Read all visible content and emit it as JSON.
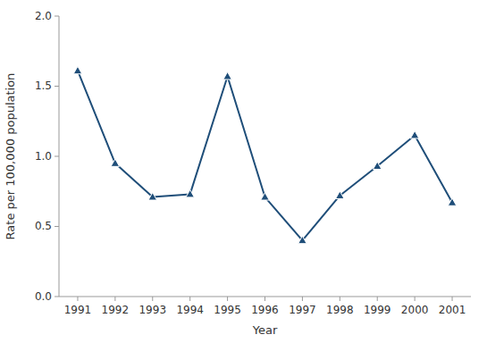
{
  "chart_data": {
    "type": "line",
    "x": [
      1991,
      1992,
      1993,
      1994,
      1995,
      1996,
      1997,
      1998,
      1999,
      2000,
      2001
    ],
    "values": [
      1.61,
      0.95,
      0.71,
      0.73,
      1.57,
      0.71,
      0.4,
      0.72,
      0.93,
      1.15,
      0.67
    ],
    "color": "#1F4E79",
    "marker": "triangle",
    "xlabel": "Year",
    "ylabel": "Rate per 100,000 population",
    "xlim": [
      1990.5,
      2001.5
    ],
    "ylim": [
      0.0,
      2.0
    ],
    "xticks": [
      1991,
      1992,
      1993,
      1994,
      1995,
      1996,
      1997,
      1998,
      1999,
      2000,
      2001
    ],
    "yticks": [
      {
        "value": 0.0,
        "label": "0.0"
      },
      0.5,
      {
        "value": 1.0,
        "label": "1.0"
      },
      1.5,
      {
        "value": 2.0,
        "label": "2.0"
      }
    ],
    "grid": false
  }
}
